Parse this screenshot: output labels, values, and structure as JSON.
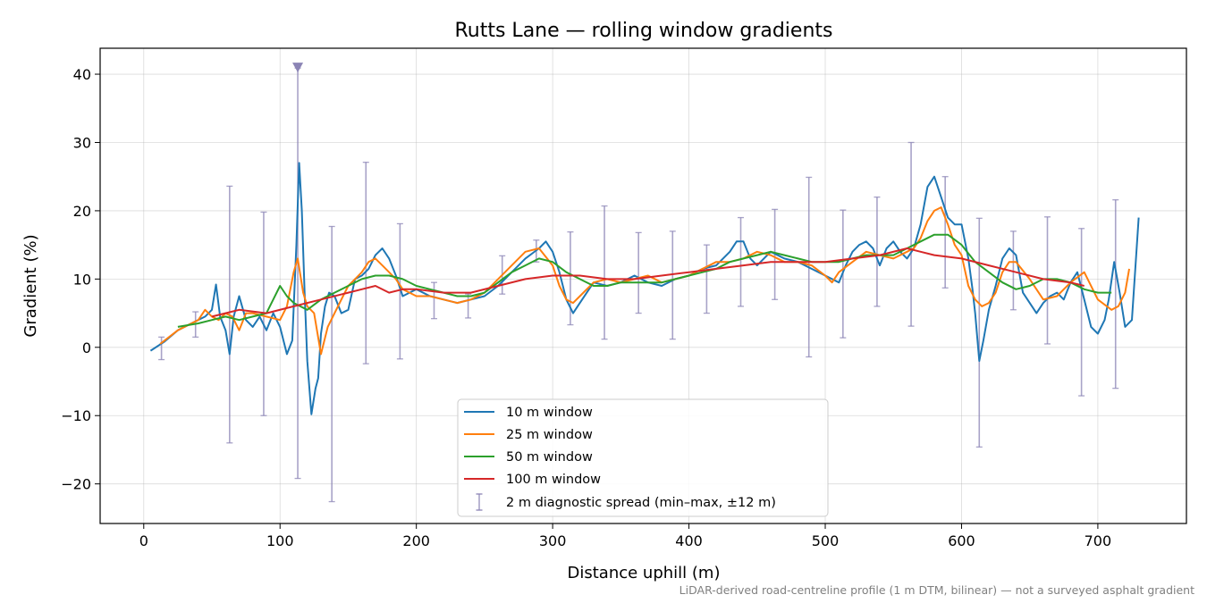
{
  "chart_data": {
    "type": "line",
    "title": "Rutts Lane — rolling window gradients",
    "xlabel": "Distance uphill (m)",
    "ylabel": "Gradient (%)",
    "xlim": [
      -32,
      765
    ],
    "ylim": [
      -25.8,
      43.8
    ],
    "xticks": [
      0,
      100,
      200,
      300,
      400,
      500,
      600,
      700
    ],
    "yticks": [
      -20,
      -10,
      0,
      10,
      20,
      30,
      40
    ],
    "xtick_labels": [
      "0",
      "100",
      "200",
      "300",
      "400",
      "500",
      "600",
      "700"
    ],
    "ytick_labels": [
      "−20",
      "−10",
      "0",
      "10",
      "20",
      "30",
      "40"
    ],
    "grid": true,
    "legend_position": "lower-center",
    "caption": "LiDAR-derived road-centreline profile (1 m DTM, bilinear) — not a surveyed asphalt gradient",
    "series": [
      {
        "name": "10 m window",
        "color": "#1f77b4",
        "x": [
          5,
          15,
          25,
          35,
          45,
          50,
          53,
          56,
          60,
          63,
          66,
          70,
          75,
          80,
          85,
          90,
          95,
          100,
          105,
          109,
          112,
          114,
          116,
          118,
          120,
          123,
          126,
          128,
          130,
          133,
          136,
          140,
          145,
          150,
          155,
          160,
          165,
          170,
          175,
          180,
          185,
          190,
          195,
          200,
          210,
          220,
          230,
          240,
          250,
          260,
          270,
          280,
          290,
          295,
          300,
          305,
          310,
          315,
          320,
          330,
          340,
          350,
          360,
          370,
          380,
          390,
          400,
          410,
          420,
          430,
          435,
          440,
          445,
          450,
          460,
          470,
          480,
          490,
          500,
          510,
          515,
          520,
          525,
          530,
          535,
          540,
          545,
          550,
          555,
          560,
          565,
          570,
          575,
          580,
          585,
          590,
          595,
          600,
          605,
          608,
          610,
          613,
          616,
          620,
          625,
          630,
          635,
          640,
          645,
          650,
          655,
          660,
          665,
          670,
          675,
          680,
          685,
          690,
          695,
          700,
          705,
          708,
          712,
          716,
          720,
          725,
          730
        ],
        "y": [
          -0.5,
          0.8,
          2.5,
          3.5,
          4.5,
          5.5,
          9.2,
          4.5,
          2.5,
          -1.0,
          4.5,
          7.5,
          4.0,
          3.0,
          4.5,
          2.5,
          5.0,
          3.0,
          -1.0,
          1.0,
          15.0,
          27.0,
          20.0,
          8.0,
          -2.0,
          -9.8,
          -6.0,
          -4.5,
          2.0,
          6.0,
          8.0,
          7.5,
          5.0,
          5.5,
          10.0,
          10.5,
          11.5,
          13.5,
          14.5,
          13.0,
          10.5,
          7.5,
          8.0,
          8.5,
          7.5,
          7.0,
          6.5,
          7.0,
          7.5,
          9.0,
          11.0,
          13.0,
          14.5,
          15.5,
          14.0,
          11.0,
          7.0,
          5.0,
          6.5,
          9.5,
          9.0,
          9.5,
          10.5,
          9.5,
          9.0,
          10.0,
          10.5,
          11.5,
          12.0,
          14.0,
          15.5,
          15.5,
          13.0,
          12.0,
          14.0,
          13.0,
          12.5,
          11.5,
          10.5,
          9.5,
          12.0,
          14.0,
          15.0,
          15.5,
          14.5,
          12.0,
          14.5,
          15.5,
          14.0,
          13.0,
          14.5,
          18.0,
          23.5,
          25.0,
          22.0,
          19.0,
          18.0,
          18.0,
          13.0,
          8.5,
          5.0,
          -2.0,
          1.0,
          5.5,
          9.0,
          13.0,
          14.5,
          13.5,
          8.0,
          6.5,
          5.0,
          6.5,
          7.5,
          8.0,
          7.0,
          9.5,
          11.0,
          7.0,
          3.0,
          2.0,
          4.0,
          7.0,
          12.5,
          8.0,
          3.0,
          4.0,
          19.0
        ]
      },
      {
        "name": "25 m window",
        "color": "#ff7f0e",
        "x": [
          12,
          25,
          40,
          45,
          50,
          55,
          60,
          65,
          70,
          75,
          80,
          90,
          100,
          105,
          110,
          113,
          117,
          120,
          125,
          130,
          135,
          140,
          145,
          150,
          155,
          160,
          165,
          170,
          175,
          180,
          185,
          190,
          195,
          200,
          210,
          220,
          230,
          240,
          250,
          260,
          270,
          280,
          290,
          300,
          305,
          310,
          315,
          320,
          330,
          340,
          350,
          360,
          370,
          380,
          390,
          400,
          410,
          420,
          430,
          440,
          450,
          460,
          470,
          480,
          490,
          500,
          505,
          510,
          520,
          530,
          540,
          550,
          560,
          565,
          570,
          575,
          580,
          585,
          590,
          595,
          600,
          605,
          610,
          615,
          620,
          625,
          630,
          635,
          640,
          650,
          660,
          670,
          680,
          690,
          700,
          710,
          715,
          720,
          723
        ],
        "y": [
          0.5,
          2.5,
          4.0,
          5.5,
          4.5,
          4.0,
          5.0,
          4.5,
          2.5,
          5.0,
          5.0,
          4.5,
          4.0,
          6.0,
          11.0,
          13.0,
          8.0,
          6.0,
          5.0,
          -1.0,
          3.0,
          5.0,
          7.0,
          9.0,
          10.0,
          11.0,
          12.5,
          13.0,
          12.0,
          11.0,
          10.0,
          8.5,
          8.0,
          7.5,
          7.5,
          7.0,
          6.5,
          7.0,
          8.0,
          10.0,
          12.0,
          14.0,
          14.5,
          12.0,
          9.0,
          7.0,
          6.5,
          7.5,
          9.5,
          10.0,
          9.5,
          10.0,
          10.5,
          9.5,
          10.0,
          10.5,
          11.5,
          12.5,
          12.5,
          13.0,
          14.0,
          13.5,
          12.5,
          12.5,
          12.0,
          10.5,
          9.5,
          11.0,
          12.5,
          14.0,
          13.5,
          13.0,
          14.0,
          14.5,
          16.0,
          18.5,
          20.0,
          20.5,
          18.0,
          15.0,
          13.5,
          9.0,
          7.0,
          6.0,
          6.5,
          8.0,
          11.0,
          12.5,
          12.5,
          10.0,
          7.0,
          7.5,
          9.5,
          11.0,
          7.0,
          5.5,
          6.0,
          8.0,
          11.5
        ]
      },
      {
        "name": "50 m window",
        "color": "#2ca02c",
        "x": [
          25,
          40,
          50,
          60,
          70,
          80,
          90,
          95,
          100,
          105,
          110,
          120,
          130,
          140,
          150,
          160,
          170,
          180,
          190,
          200,
          210,
          220,
          230,
          240,
          250,
          260,
          270,
          280,
          290,
          300,
          310,
          320,
          330,
          340,
          350,
          360,
          370,
          380,
          390,
          400,
          410,
          420,
          430,
          440,
          450,
          460,
          470,
          480,
          490,
          500,
          510,
          520,
          530,
          540,
          550,
          560,
          570,
          580,
          590,
          600,
          610,
          620,
          630,
          640,
          650,
          660,
          670,
          680,
          690,
          700,
          710
        ],
        "y": [
          3.0,
          3.5,
          4.0,
          4.5,
          4.0,
          4.5,
          5.0,
          7.0,
          9.0,
          7.5,
          6.5,
          5.5,
          7.0,
          8.0,
          9.0,
          10.0,
          10.5,
          10.5,
          10.0,
          9.0,
          8.5,
          8.0,
          7.5,
          7.5,
          8.0,
          9.5,
          11.0,
          12.0,
          13.0,
          12.5,
          11.0,
          10.0,
          9.0,
          9.0,
          9.5,
          9.5,
          9.5,
          9.5,
          10.0,
          10.5,
          11.0,
          11.5,
          12.5,
          13.0,
          13.5,
          14.0,
          13.5,
          13.0,
          12.5,
          12.5,
          12.5,
          13.0,
          13.5,
          13.5,
          13.5,
          14.5,
          15.5,
          16.5,
          16.5,
          15.0,
          12.5,
          11.0,
          9.5,
          8.5,
          9.0,
          10.0,
          10.0,
          9.5,
          8.5,
          8.0,
          8.0
        ]
      },
      {
        "name": "100 m window",
        "color": "#d62728",
        "x": [
          50,
          70,
          90,
          110,
          130,
          150,
          160,
          170,
          180,
          190,
          200,
          220,
          240,
          260,
          280,
          300,
          320,
          340,
          360,
          380,
          400,
          420,
          440,
          460,
          480,
          500,
          520,
          540,
          560,
          570,
          580,
          600,
          620,
          640,
          660,
          680,
          690
        ],
        "y": [
          4.5,
          5.5,
          5.0,
          6.0,
          7.0,
          8.0,
          8.5,
          9.0,
          8.0,
          8.5,
          8.5,
          8.0,
          8.0,
          9.0,
          10.0,
          10.5,
          10.5,
          10.0,
          10.0,
          10.5,
          11.0,
          11.5,
          12.0,
          12.5,
          12.5,
          12.5,
          13.0,
          13.5,
          14.5,
          14.0,
          13.5,
          13.0,
          12.0,
          11.0,
          10.0,
          9.5,
          9.0
        ]
      }
    ],
    "diagnostic_spread": {
      "name": "2 m diagnostic spread (min–max, ±12 m)",
      "color": "#8b84b5",
      "x": [
        13,
        38,
        63,
        88,
        113,
        138,
        163,
        188,
        213,
        238,
        263,
        288,
        313,
        338,
        363,
        388,
        413,
        438,
        463,
        488,
        513,
        538,
        563,
        588,
        613,
        638,
        663,
        688,
        713
      ],
      "min": [
        -1.8,
        1.5,
        -14.0,
        -10.0,
        -19.2,
        -22.6,
        -2.4,
        -1.7,
        4.2,
        4.3,
        7.8,
        12.5,
        3.3,
        1.2,
        5.0,
        1.2,
        5.0,
        6.0,
        7.0,
        -1.4,
        1.4,
        6.0,
        3.1,
        8.7,
        -14.6,
        5.5,
        0.5,
        -7.1,
        -6.0
      ],
      "max": [
        1.5,
        5.2,
        23.6,
        19.8,
        40.9,
        17.7,
        27.1,
        18.1,
        9.5,
        7.8,
        13.4,
        15.7,
        16.9,
        20.7,
        16.8,
        17.0,
        15.0,
        19.0,
        20.2,
        24.9,
        20.1,
        22.0,
        30.0,
        25.0,
        18.9,
        17.0,
        19.1,
        17.4,
        21.6
      ],
      "clipped_marker_x": 113
    }
  }
}
